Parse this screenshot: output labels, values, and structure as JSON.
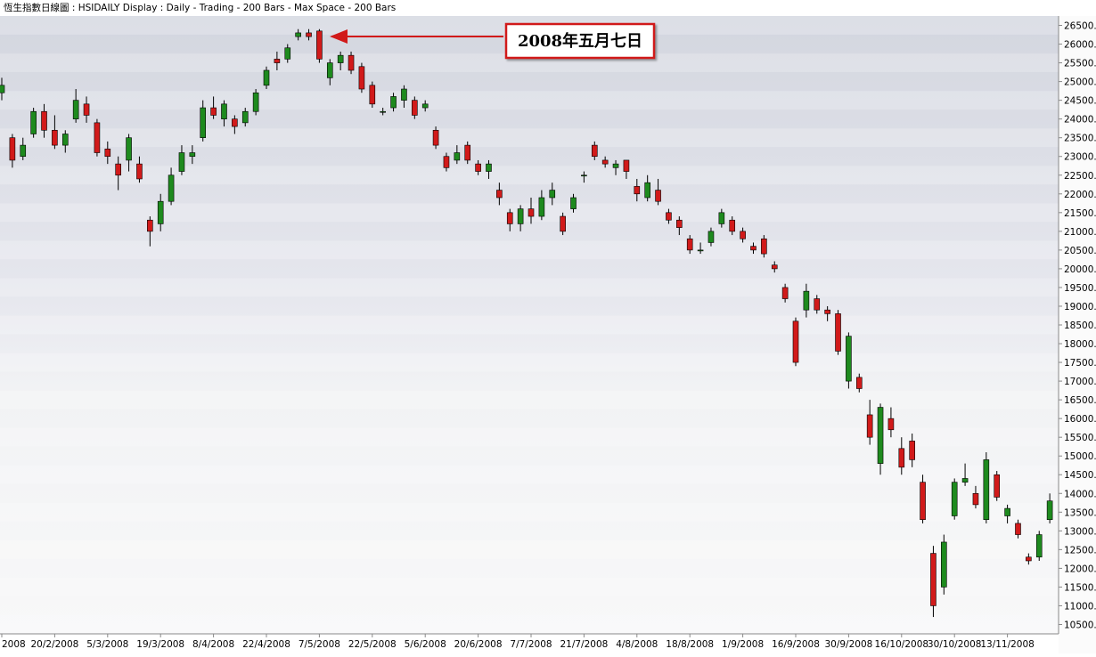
{
  "chart_data": {
    "type": "candlestick",
    "title": "恆生指數日線圖 : HSIDAILY Display :  Daily  - Trading - 200 Bars -  Max Space - 200 Bars",
    "annotation": "2008年五月七日",
    "up_color": "#1e8a1e",
    "down_color": "#d11a1a",
    "categories": [
      "2008",
      null,
      null,
      null,
      null,
      "20/2/2008",
      null,
      null,
      null,
      null,
      "5/3/2008",
      null,
      null,
      null,
      null,
      "19/3/2008",
      null,
      null,
      null,
      null,
      "8/4/2008",
      null,
      null,
      null,
      null,
      "22/4/2008",
      null,
      null,
      null,
      null,
      "7/5/2008",
      null,
      null,
      null,
      null,
      "22/5/2008",
      null,
      null,
      null,
      null,
      "5/6/2008",
      null,
      null,
      null,
      null,
      "20/6/2008",
      null,
      null,
      null,
      null,
      "7/7/2008",
      null,
      null,
      null,
      null,
      "21/7/2008",
      null,
      null,
      null,
      null,
      "4/8/2008",
      null,
      null,
      null,
      null,
      "18/8/2008",
      null,
      null,
      null,
      null,
      "1/9/2008",
      null,
      null,
      null,
      null,
      "16/9/2008",
      null,
      null,
      null,
      null,
      "30/9/2008",
      null,
      null,
      null,
      null,
      "16/10/2008",
      null,
      null,
      null,
      null,
      "30/10/2008",
      null,
      null,
      null,
      null,
      "13/11/2008",
      null,
      null,
      null,
      null
    ],
    "open": [
      24700,
      23500,
      23000,
      23600,
      24200,
      23700,
      23300,
      24000,
      24400,
      23900,
      23200,
      22800,
      22900,
      22800,
      21300,
      21200,
      21800,
      22600,
      23000,
      23500,
      24300,
      24000,
      24000,
      23900,
      24200,
      24900,
      25600,
      25600,
      26200,
      26300,
      26350,
      25100,
      25500,
      25700,
      25400,
      24900,
      24200,
      24300,
      24500,
      24500,
      24300,
      23700,
      23000,
      22900,
      23300,
      22800,
      22600,
      22100,
      21500,
      21200,
      21600,
      21400,
      21900,
      21400,
      21600,
      22500,
      23300,
      22900,
      22700,
      22900,
      22200,
      21900,
      22100,
      21500,
      21300,
      20800,
      20500,
      20700,
      21200,
      21300,
      21000,
      20600,
      20800,
      20100,
      19500,
      18600,
      18900,
      19200,
      18900,
      18800,
      17000,
      17100,
      16100,
      14800,
      16000,
      15200,
      15400,
      14300,
      12400,
      11500,
      13400,
      14300,
      14000,
      13300,
      14500,
      13400,
      13200,
      12300,
      12300,
      13300
    ],
    "high": [
      25100,
      23600,
      23500,
      24300,
      24400,
      24100,
      23700,
      24800,
      24600,
      24000,
      23400,
      23000,
      23600,
      23000,
      21400,
      22000,
      22700,
      23300,
      23300,
      24500,
      24600,
      24500,
      24100,
      24300,
      24800,
      25400,
      25800,
      26000,
      26400,
      26400,
      26400,
      25600,
      25800,
      25800,
      25500,
      25000,
      24300,
      24700,
      24900,
      24600,
      24500,
      23800,
      23100,
      23300,
      23400,
      22900,
      22900,
      22300,
      21600,
      21700,
      21900,
      22100,
      22300,
      21500,
      22000,
      22600,
      23400,
      23000,
      22900,
      22900,
      22400,
      22500,
      22400,
      21600,
      21400,
      20900,
      20700,
      21100,
      21600,
      21400,
      21100,
      20700,
      20900,
      20200,
      19600,
      18700,
      19600,
      19300,
      19000,
      18900,
      18300,
      17200,
      16500,
      16400,
      16300,
      15500,
      15600,
      14500,
      12600,
      12900,
      14400,
      14800,
      14200,
      15100,
      14600,
      13700,
      13300,
      12400,
      13000,
      14000
    ],
    "low": [
      24500,
      22700,
      22900,
      23500,
      23500,
      23200,
      23100,
      23900,
      23900,
      23000,
      22800,
      22100,
      22600,
      22300,
      20600,
      21000,
      21700,
      22500,
      22800,
      23400,
      24000,
      23800,
      23600,
      23800,
      24100,
      24800,
      25300,
      25500,
      26100,
      26100,
      25500,
      24900,
      25300,
      25200,
      24700,
      24300,
      24100,
      24200,
      24300,
      24000,
      24200,
      23200,
      22600,
      22800,
      22800,
      22500,
      22400,
      21700,
      21000,
      21000,
      21200,
      21300,
      21700,
      20900,
      21500,
      22300,
      22900,
      22700,
      22500,
      22400,
      21800,
      21800,
      21700,
      21200,
      20900,
      20400,
      20400,
      20600,
      21100,
      20900,
      20700,
      20400,
      20300,
      19900,
      19100,
      17400,
      18700,
      18800,
      18600,
      17700,
      16800,
      16700,
      15300,
      14500,
      15500,
      14500,
      14700,
      13200,
      10700,
      11300,
      13300,
      14200,
      13600,
      13200,
      13800,
      13200,
      12800,
      12100,
      12200,
      13200
    ],
    "close": [
      24900,
      22900,
      23300,
      24200,
      23700,
      23300,
      23600,
      24500,
      24100,
      23100,
      23000,
      22500,
      23500,
      22400,
      21000,
      21800,
      22500,
      23100,
      23100,
      24300,
      24100,
      24400,
      23800,
      24200,
      24700,
      25300,
      25500,
      25900,
      26300,
      26200,
      25600,
      25500,
      25700,
      25300,
      24800,
      24400,
      24200,
      24600,
      24800,
      24100,
      24400,
      23300,
      22700,
      23100,
      22900,
      22600,
      22800,
      21900,
      21200,
      21600,
      21400,
      21900,
      22100,
      21000,
      21900,
      22500,
      23000,
      22800,
      22800,
      22600,
      22000,
      22300,
      21800,
      21300,
      21100,
      20500,
      20500,
      21000,
      21500,
      21000,
      20800,
      20500,
      20400,
      20000,
      19200,
      17500,
      19400,
      18900,
      18800,
      17800,
      18200,
      16800,
      15500,
      16300,
      15700,
      14700,
      14900,
      13300,
      11000,
      12700,
      14300,
      14400,
      13700,
      14900,
      13900,
      13600,
      12900,
      12200,
      12900,
      13800
    ],
    "ylim": [
      10250,
      26750
    ],
    "yticks": [
      {
        "value": 10500,
        "label": "10500.0"
      },
      {
        "value": 11000,
        "label": "11000.0"
      },
      {
        "value": 11500,
        "label": "11500.0"
      },
      {
        "value": 12000,
        "label": "12000.0"
      },
      {
        "value": 12500,
        "label": "12500.0"
      },
      {
        "value": 13000,
        "label": "13000.0"
      },
      {
        "value": 13500,
        "label": "13500.0"
      },
      {
        "value": 14000,
        "label": "14000.0"
      },
      {
        "value": 14500,
        "label": "14500.0"
      },
      {
        "value": 15000,
        "label": "15000.0"
      },
      {
        "value": 15500,
        "label": "15500.0"
      },
      {
        "value": 16000,
        "label": "16000.0"
      },
      {
        "value": 16500,
        "label": "16500.0"
      },
      {
        "value": 17000,
        "label": "17000.0"
      },
      {
        "value": 17500,
        "label": "17500.0"
      },
      {
        "value": 18000,
        "label": "18000.0"
      },
      {
        "value": 18500,
        "label": "18500.0"
      },
      {
        "value": 19000,
        "label": "19000.0"
      },
      {
        "value": 19500,
        "label": "19500.0"
      },
      {
        "value": 20000,
        "label": "20000.0"
      },
      {
        "value": 20500,
        "label": "20500.0"
      },
      {
        "value": 21000,
        "label": "21000.0"
      },
      {
        "value": 21500,
        "label": "21500.0"
      },
      {
        "value": 22000,
        "label": "22000.0"
      },
      {
        "value": 22500,
        "label": "22500.0"
      },
      {
        "value": 23000,
        "label": "23000.0"
      },
      {
        "value": 23500,
        "label": "23500.0"
      },
      {
        "value": 24000,
        "label": "24000.0"
      },
      {
        "value": 24500,
        "label": "24500.0"
      },
      {
        "value": 25000,
        "label": "25000.0"
      },
      {
        "value": 25500,
        "label": "25500.0"
      },
      {
        "value": 26000,
        "label": "26000.0"
      },
      {
        "value": 26500,
        "label": "26500.0"
      }
    ]
  }
}
